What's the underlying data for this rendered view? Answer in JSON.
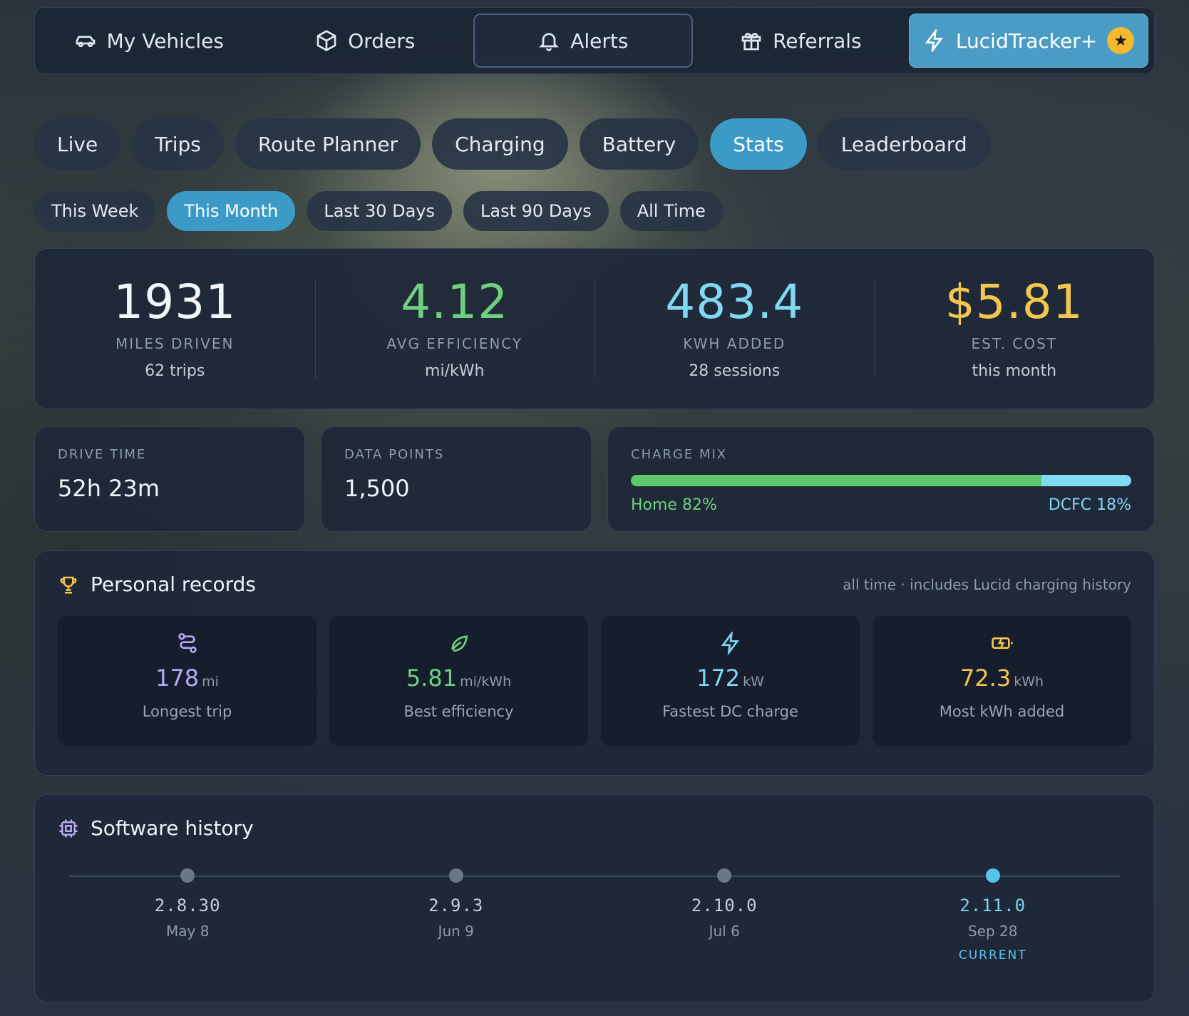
{
  "nav": [
    {
      "label": "My Vehicles",
      "icon": "car-icon"
    },
    {
      "label": "Orders",
      "icon": "package-icon"
    },
    {
      "label": "Alerts",
      "icon": "bell-icon"
    },
    {
      "label": "Referrals",
      "icon": "gift-icon"
    },
    {
      "label": "LucidTracker+",
      "icon": "lightning-icon"
    }
  ],
  "tabs": [
    "Live",
    "Trips",
    "Route Planner",
    "Charging",
    "Battery",
    "Stats",
    "Leaderboard"
  ],
  "periods": [
    "This Week",
    "This Month",
    "Last 30 Days",
    "Last 90 Days",
    "All Time"
  ],
  "summary": [
    {
      "value": "1931",
      "label": "MILES DRIVEN",
      "sub": "62 trips",
      "color": "#f2f5f9"
    },
    {
      "value": "4.12",
      "label": "AVG EFFICIENCY",
      "sub": "mi/kWh",
      "color": "#6fd07e"
    },
    {
      "value": "483.4",
      "label": "KWH ADDED",
      "sub": "28 sessions",
      "color": "#80d8f2"
    },
    {
      "value": "$5.81",
      "label": "EST. COST",
      "sub": "this month",
      "color": "#f3c64e"
    }
  ],
  "drive_time": {
    "label": "DRIVE TIME",
    "value": "52h 23m"
  },
  "data_points": {
    "label": "DATA POINTS",
    "value": "1,500"
  },
  "charge_mix": {
    "label": "CHARGE MIX",
    "home_label": "Home 82%",
    "dcfc_label": "DCFC 18%",
    "home_pct": 82,
    "dcfc_pct": 18,
    "home_color": "#5cc86a",
    "dcfc_color": "#7fdcf4"
  },
  "records": {
    "title": "Personal records",
    "note": "all time · includes Lucid charging history",
    "items": [
      {
        "value": "178",
        "unit": "mi",
        "desc": "Longest trip",
        "color": "#b7a8f5",
        "icon": "route-icon"
      },
      {
        "value": "5.81",
        "unit": "mi/kWh",
        "desc": "Best efficiency",
        "color": "#6fd07e",
        "icon": "leaf-icon"
      },
      {
        "value": "172",
        "unit": "kW",
        "desc": "Fastest DC charge",
        "color": "#80d8f2",
        "icon": "bolt-icon"
      },
      {
        "value": "72.3",
        "unit": "kWh",
        "desc": "Most kWh added",
        "color": "#f3c64e",
        "icon": "battery-charging-icon"
      }
    ]
  },
  "software": {
    "title": "Software history",
    "versions": [
      {
        "version": "2.8.30",
        "date": "May 8"
      },
      {
        "version": "2.9.3",
        "date": "Jun 9"
      },
      {
        "version": "2.10.0",
        "date": "Jul 6"
      },
      {
        "version": "2.11.0",
        "date": "Sep 28",
        "current_label": "CURRENT"
      }
    ]
  }
}
